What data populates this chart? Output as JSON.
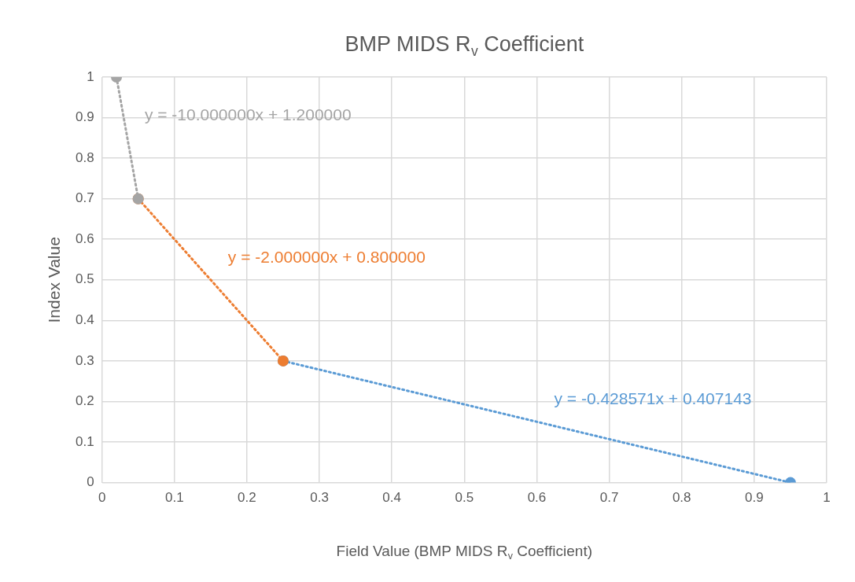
{
  "chart_data": {
    "type": "line",
    "title": "BMP MIDS R$_{v}$ Coefficient",
    "xlabel": "Field Value (BMP MIDS R$_{v}$ Coefficient)",
    "ylabel": "Index Value",
    "series": [
      {
        "name": "y = -10.000000x + 1.200000",
        "color": "#a5a5a5",
        "x": [
          0.02,
          0.05
        ],
        "values": [
          1,
          0.7
        ]
      },
      {
        "name": "y = -2.000000x + 0.800000",
        "color": "#ed7d31",
        "x": [
          0.05,
          0.25
        ],
        "values": [
          0.7,
          0.3
        ]
      },
      {
        "name": "y = -0.428571x + 0.407143",
        "color": "#5b9bd5",
        "x": [
          0.25,
          0.95
        ],
        "values": [
          0.3,
          0
        ]
      }
    ],
    "marker": "circle",
    "line_style": "dotted",
    "xlim": [
      0,
      1
    ],
    "xticks": [
      0,
      0.1,
      0.2,
      0.3,
      0.4,
      0.5,
      0.6,
      0.7,
      0.8,
      0.9,
      1
    ],
    "ylim": [
      0,
      1
    ],
    "yticks": [
      0,
      0.1,
      0.2,
      0.3,
      0.4,
      0.5,
      0.6,
      0.7,
      0.8,
      0.9,
      1
    ],
    "grid": true,
    "legend": false
  }
}
